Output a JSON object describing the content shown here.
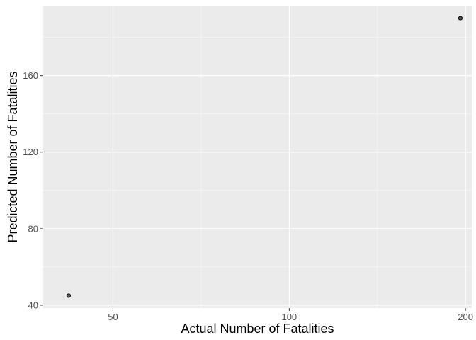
{
  "chart_data": {
    "type": "scatter",
    "xlabel": "Actual Number of Fatalities",
    "ylabel": "Predicted Number of Fatalities",
    "x_scale": "log10",
    "xlim": [
      38,
      205
    ],
    "ylim": [
      38.5,
      196.5
    ],
    "x_ticks": [
      50,
      100,
      200
    ],
    "x_tick_labels": [
      "50",
      "100",
      "200"
    ],
    "y_ticks": [
      40,
      80,
      120,
      160
    ],
    "y_tick_labels": [
      "40",
      "80",
      "120",
      "160"
    ],
    "x_minor_ticks": [
      70.7,
      141.4
    ],
    "y_minor_ticks": [
      60,
      100,
      140,
      180
    ],
    "grid": true,
    "legend": "none",
    "points": [
      {
        "x": 42,
        "y": 45
      },
      {
        "x": 196,
        "y": 190
      }
    ],
    "colors": {
      "panel_background": "#ebebeb",
      "grid_major": "#ffffff",
      "grid_minor": "#f5f5f5",
      "point_fill": "#595959",
      "point_stroke": "#000000"
    }
  }
}
